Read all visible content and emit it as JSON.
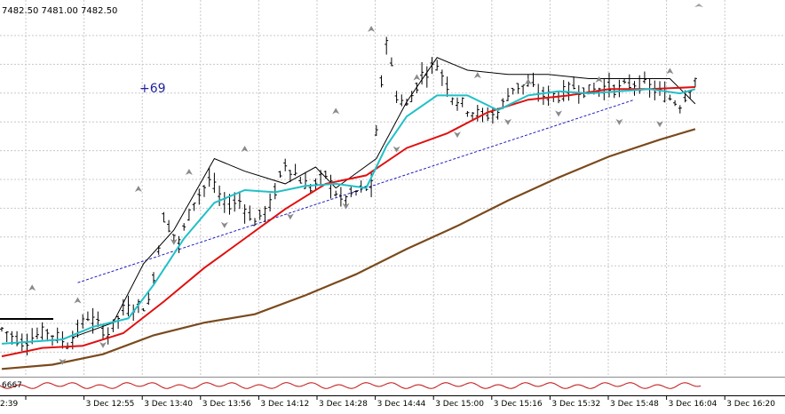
{
  "header": {
    "ohlc_text": "7482.50 7481.00 7482.50"
  },
  "annotation": {
    "text": "+69",
    "color": "#1f1f9e"
  },
  "oscillator": {
    "label": "6667"
  },
  "chart_data": {
    "type": "candlestick",
    "x_tick_labels": [
      "2:39",
      "3 Dec 12:55",
      "3 Dec 13:40",
      "3 Dec 13:56",
      "3 Dec 14:12",
      "3 Dec 14:28",
      "3 Dec 14:44",
      "3 Dec 15:00",
      "3 Dec 15:16",
      "3 Dec 15:32",
      "3 Dec 15:48",
      "3 Dec 16:04",
      "3 Dec 16:20"
    ],
    "ylim": [
      7338,
      7512
    ],
    "grid": true,
    "colors": {
      "bars": "#000000",
      "ema_fast": "#20c0c8",
      "ema_slow": "#e01010",
      "ema_long": "#7a4a1c",
      "trend": "#2020c0",
      "fractal": "#8a8a8a",
      "osc": "#c01010"
    },
    "price_path": [
      [
        0,
        7359
      ],
      [
        4,
        7353
      ],
      [
        9,
        7358
      ],
      [
        13,
        7352
      ],
      [
        17,
        7365
      ],
      [
        21,
        7357
      ],
      [
        24,
        7368
      ],
      [
        29,
        7371
      ],
      [
        32,
        7412
      ],
      [
        35,
        7400
      ],
      [
        38,
        7420
      ],
      [
        41,
        7430
      ],
      [
        44,
        7418
      ],
      [
        47,
        7420
      ],
      [
        50,
        7410
      ],
      [
        53,
        7418
      ],
      [
        56,
        7438
      ],
      [
        59,
        7430
      ],
      [
        61,
        7426
      ],
      [
        64,
        7432
      ],
      [
        67,
        7420
      ],
      [
        70,
        7424
      ],
      [
        73,
        7427
      ],
      [
        75,
        7476
      ],
      [
        76,
        7497
      ],
      [
        78,
        7470
      ],
      [
        80,
        7465
      ],
      [
        83,
        7480
      ],
      [
        86,
        7485
      ],
      [
        89,
        7470
      ],
      [
        92,
        7464
      ],
      [
        95,
        7460
      ],
      [
        98,
        7462
      ],
      [
        101,
        7474
      ],
      [
        104,
        7475
      ],
      [
        107,
        7470
      ],
      [
        110,
        7470
      ],
      [
        113,
        7474
      ],
      [
        116,
        7472
      ],
      [
        119,
        7474
      ],
      [
        122,
        7473
      ],
      [
        125,
        7476
      ],
      [
        128,
        7474
      ],
      [
        131,
        7470
      ],
      [
        134,
        7466
      ],
      [
        137,
        7478
      ]
    ],
    "ema_fast": [
      [
        0,
        7352
      ],
      [
        6,
        7353
      ],
      [
        12,
        7354
      ],
      [
        18,
        7360
      ],
      [
        25,
        7364
      ],
      [
        30,
        7380
      ],
      [
        36,
        7402
      ],
      [
        42,
        7419
      ],
      [
        48,
        7425
      ],
      [
        54,
        7424
      ],
      [
        60,
        7427
      ],
      [
        66,
        7428
      ],
      [
        72,
        7426
      ],
      [
        76,
        7446
      ],
      [
        80,
        7460
      ],
      [
        86,
        7470
      ],
      [
        92,
        7470
      ],
      [
        98,
        7463
      ],
      [
        104,
        7470
      ],
      [
        110,
        7472
      ],
      [
        116,
        7471
      ],
      [
        122,
        7472
      ],
      [
        128,
        7473
      ],
      [
        134,
        7471
      ],
      [
        137,
        7473
      ]
    ],
    "ema_slow": [
      [
        0,
        7346
      ],
      [
        8,
        7350
      ],
      [
        16,
        7351
      ],
      [
        24,
        7357
      ],
      [
        32,
        7372
      ],
      [
        40,
        7388
      ],
      [
        48,
        7402
      ],
      [
        56,
        7416
      ],
      [
        64,
        7428
      ],
      [
        72,
        7432
      ],
      [
        80,
        7445
      ],
      [
        88,
        7452
      ],
      [
        96,
        7462
      ],
      [
        104,
        7468
      ],
      [
        112,
        7470
      ],
      [
        120,
        7473
      ],
      [
        128,
        7473
      ],
      [
        137,
        7474
      ]
    ],
    "ema_long": [
      [
        0,
        7340
      ],
      [
        10,
        7342
      ],
      [
        20,
        7347
      ],
      [
        30,
        7356
      ],
      [
        40,
        7362
      ],
      [
        50,
        7366
      ],
      [
        60,
        7375
      ],
      [
        70,
        7385
      ],
      [
        80,
        7397
      ],
      [
        90,
        7408
      ],
      [
        100,
        7420
      ],
      [
        110,
        7431
      ],
      [
        120,
        7441
      ],
      [
        130,
        7449
      ],
      [
        137,
        7454
      ]
    ],
    "envelope": [
      [
        14,
        7355
      ],
      [
        22,
        7362
      ],
      [
        28,
        7390
      ],
      [
        34,
        7406
      ],
      [
        42,
        7440
      ],
      [
        48,
        7434
      ],
      [
        56,
        7428
      ],
      [
        62,
        7436
      ],
      [
        66,
        7426
      ],
      [
        74,
        7440
      ],
      [
        80,
        7467
      ],
      [
        86,
        7488
      ],
      [
        92,
        7482
      ],
      [
        100,
        7480
      ],
      [
        108,
        7480
      ],
      [
        116,
        7478
      ],
      [
        124,
        7478
      ],
      [
        132,
        7478
      ],
      [
        137,
        7466
      ]
    ],
    "trendline": [
      [
        15,
        7381
      ],
      [
        125,
        7468
      ]
    ],
    "fractals_up": [
      [
        6,
        7378
      ],
      [
        15,
        7372
      ],
      [
        27,
        7425
      ],
      [
        37,
        7433
      ],
      [
        48,
        7444
      ],
      [
        66,
        7462
      ],
      [
        73,
        7501
      ],
      [
        82,
        7478
      ],
      [
        94,
        7479
      ],
      [
        104,
        7476
      ],
      [
        118,
        7477
      ],
      [
        132,
        7481
      ]
    ],
    "fractals_down": [
      [
        12,
        7344
      ],
      [
        20,
        7352
      ],
      [
        34,
        7401
      ],
      [
        44,
        7409
      ],
      [
        57,
        7413
      ],
      [
        68,
        7418
      ],
      [
        78,
        7445
      ],
      [
        90,
        7452
      ],
      [
        100,
        7458
      ],
      [
        110,
        7462
      ],
      [
        122,
        7458
      ],
      [
        130,
        7457
      ]
    ]
  }
}
